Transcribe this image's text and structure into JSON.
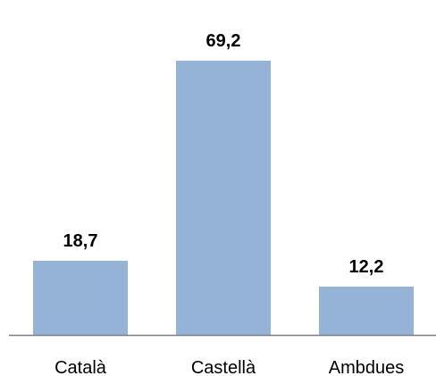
{
  "chart_data": {
    "type": "bar",
    "title": "",
    "xlabel": "",
    "ylabel": "",
    "categories": [
      "Català",
      "Castellà",
      "Ambdues"
    ],
    "values": [
      18.7,
      69.2,
      12.2
    ],
    "value_labels": [
      "18,7",
      "69,2",
      "12,2"
    ],
    "ylim": [
      0,
      80
    ],
    "grid": false,
    "legend": "none",
    "bar_color": "#95B3D7",
    "axis_color": "#7F7F7F"
  }
}
